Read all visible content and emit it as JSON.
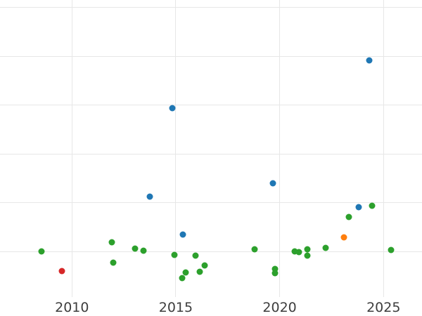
{
  "chart_data": {
    "type": "scatter",
    "title": "",
    "xlabel": "",
    "ylabel": "",
    "grid": true,
    "legend": false,
    "background": "#ffffff",
    "gridline_color": "#e7e7e7",
    "tick_label_color": "#3d3d3d",
    "x_axis": {
      "tick_labels": [
        "2010",
        "2015",
        "2020",
        "2025"
      ],
      "tick_values": [
        2010,
        2015,
        2020,
        2025
      ],
      "range": [
        2006.5,
        2026.9
      ]
    },
    "y_axis": {
      "tick_labels": [],
      "note": "y-axis tick labels are cropped outside the image; values below are in gridline units (0 = lowest visible gridline, +1 per gridline upward)",
      "gridline_values": [
        0,
        1,
        2,
        3,
        4,
        5
      ],
      "range": [
        -0.94,
        5.15
      ]
    },
    "series": [
      {
        "name": "green",
        "color": "#2ca02c",
        "points": [
          [
            2008.53,
            0.0
          ],
          [
            2011.93,
            0.18
          ],
          [
            2011.99,
            -0.23
          ],
          [
            2013.05,
            0.06
          ],
          [
            2013.44,
            0.02
          ],
          [
            2014.95,
            -0.07
          ],
          [
            2015.3,
            -0.54
          ],
          [
            2015.48,
            -0.43
          ],
          [
            2015.96,
            -0.08
          ],
          [
            2016.14,
            -0.42
          ],
          [
            2016.4,
            -0.29
          ],
          [
            2018.78,
            0.04
          ],
          [
            2019.76,
            -0.36
          ],
          [
            2019.77,
            -0.45
          ],
          [
            2020.72,
            0.0
          ],
          [
            2020.92,
            -0.02
          ],
          [
            2021.34,
            0.04
          ],
          [
            2021.34,
            -0.08
          ],
          [
            2022.2,
            0.07
          ],
          [
            2023.32,
            0.7
          ],
          [
            2024.46,
            0.93
          ],
          [
            2025.35,
            0.03
          ]
        ]
      },
      {
        "name": "blue",
        "color": "#1f77b4",
        "points": [
          [
            2013.76,
            1.12
          ],
          [
            2014.82,
            2.94
          ],
          [
            2015.33,
            0.35
          ],
          [
            2019.66,
            1.4
          ],
          [
            2023.82,
            0.91
          ],
          [
            2024.32,
            3.92
          ]
        ]
      },
      {
        "name": "red",
        "color": "#d62728",
        "points": [
          [
            2009.52,
            -0.41
          ]
        ]
      },
      {
        "name": "orange",
        "color": "#ff7f0e",
        "points": [
          [
            2023.1,
            0.29
          ]
        ]
      }
    ]
  }
}
